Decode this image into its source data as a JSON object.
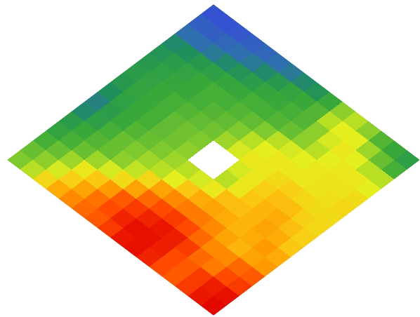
{
  "chart_data": {
    "type": "heatmap",
    "tick_labels": false,
    "zlim": [
      0,
      100
    ],
    "z": [
      [
        5,
        5,
        6,
        8,
        10,
        12,
        15,
        20,
        25,
        38,
        50,
        55,
        50,
        42,
        38,
        32
      ],
      [
        8,
        8,
        10,
        12,
        15,
        20,
        28,
        35,
        38,
        42,
        55,
        60,
        60,
        52,
        45,
        40
      ],
      [
        12,
        12,
        15,
        20,
        25,
        30,
        36,
        38,
        40,
        42,
        50,
        58,
        62,
        60,
        55,
        55
      ],
      [
        20,
        22,
        28,
        32,
        36,
        38,
        40,
        40,
        42,
        45,
        50,
        55,
        60,
        62,
        62,
        60
      ],
      [
        25,
        30,
        34,
        38,
        40,
        40,
        42,
        44,
        48,
        55,
        58,
        60,
        62,
        63,
        63,
        65
      ],
      [
        28,
        33,
        36,
        38,
        40,
        42,
        44,
        48,
        55,
        60,
        62,
        62,
        62,
        63,
        64,
        66
      ],
      [
        30,
        34,
        38,
        40,
        42,
        44,
        46,
        52,
        58,
        62,
        62,
        65,
        68,
        66,
        65,
        65
      ],
      [
        28,
        35,
        38,
        40,
        44,
        46,
        48,
        null,
        null,
        58,
        62,
        68,
        72,
        72,
        68,
        66
      ],
      [
        22,
        33,
        38,
        40,
        44,
        46,
        50,
        null,
        null,
        55,
        62,
        70,
        74,
        76,
        72,
        68
      ],
      [
        18,
        30,
        38,
        42,
        45,
        48,
        52,
        55,
        58,
        62,
        72,
        72,
        74,
        78,
        76,
        70
      ],
      [
        20,
        32,
        40,
        45,
        48,
        52,
        55,
        60,
        70,
        76,
        78,
        76,
        74,
        76,
        80,
        76
      ],
      [
        30,
        38,
        42,
        45,
        50,
        56,
        66,
        78,
        82,
        84,
        84,
        82,
        78,
        74,
        78,
        80
      ],
      [
        35,
        40,
        45,
        52,
        58,
        65,
        78,
        86,
        90,
        92,
        90,
        86,
        82,
        82,
        86,
        88
      ],
      [
        40,
        45,
        52,
        62,
        70,
        80,
        88,
        92,
        95,
        97,
        96,
        92,
        86,
        84,
        90,
        92
      ],
      [
        45,
        50,
        58,
        68,
        78,
        85,
        90,
        95,
        98,
        98,
        96,
        90,
        88,
        92,
        96,
        98
      ],
      [
        48,
        55,
        66,
        76,
        82,
        86,
        88,
        92,
        97,
        98,
        95,
        90,
        88,
        92,
        97,
        99
      ]
    ]
  }
}
